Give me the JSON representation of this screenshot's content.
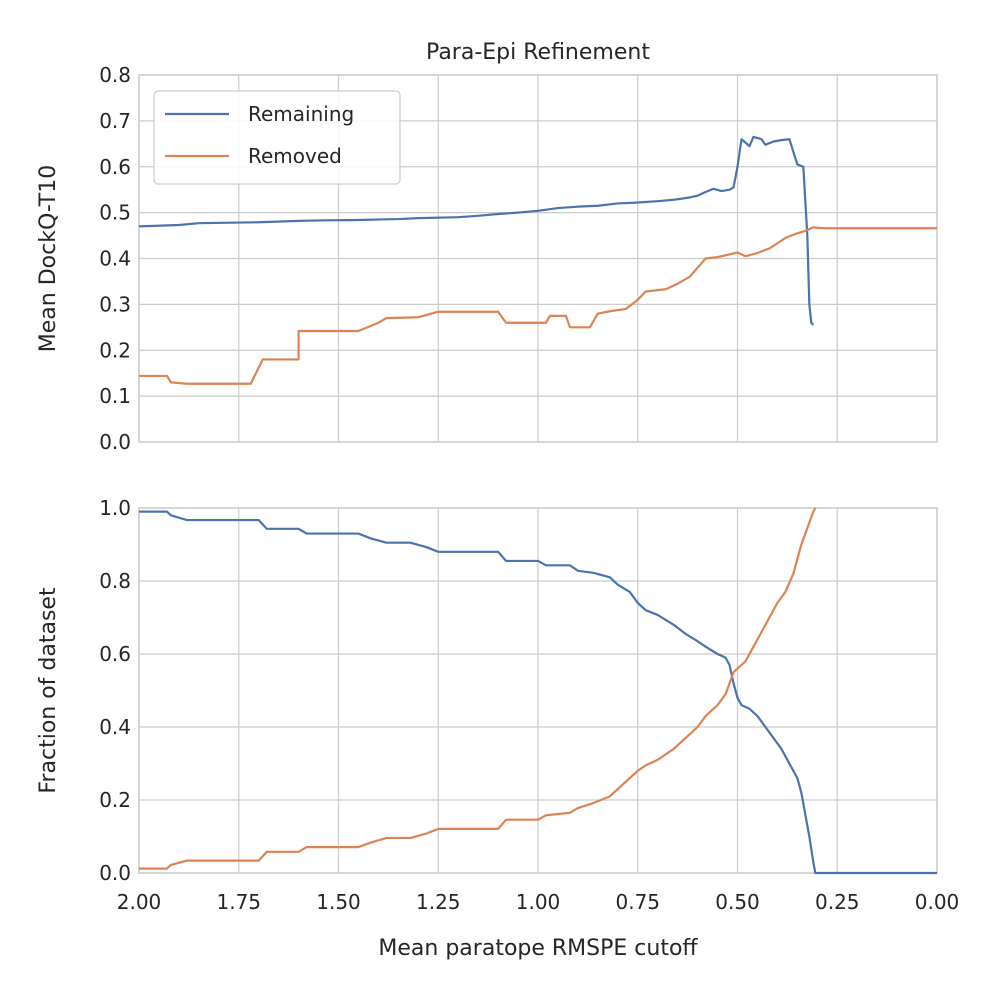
{
  "chart_data": [
    {
      "type": "line",
      "title": "Para-Epi Refinement",
      "xlabel": "",
      "ylabel": "Mean DockQ-T10",
      "xlim": [
        2.0,
        0.0
      ],
      "ylim": [
        0.0,
        0.8
      ],
      "yticks": [
        "0.0",
        "0.1",
        "0.2",
        "0.3",
        "0.4",
        "0.5",
        "0.6",
        "0.7",
        "0.8"
      ],
      "grid": true,
      "legend": {
        "placement": "top-left",
        "entries": [
          "Remaining",
          "Removed"
        ]
      },
      "colors": {
        "Remaining": "#4c72b0",
        "Removed": "#dd8452"
      },
      "series": [
        {
          "name": "Remaining",
          "points": [
            [
              2.0,
              0.47
            ],
            [
              1.9,
              0.473
            ],
            [
              1.85,
              0.477
            ],
            [
              1.7,
              0.479
            ],
            [
              1.6,
              0.482
            ],
            [
              1.55,
              0.483
            ],
            [
              1.45,
              0.484
            ],
            [
              1.35,
              0.486
            ],
            [
              1.3,
              0.488
            ],
            [
              1.2,
              0.49
            ],
            [
              1.15,
              0.493
            ],
            [
              1.1,
              0.497
            ],
            [
              1.05,
              0.5
            ],
            [
              1.0,
              0.504
            ],
            [
              0.95,
              0.51
            ],
            [
              0.9,
              0.513
            ],
            [
              0.85,
              0.515
            ],
            [
              0.8,
              0.52
            ],
            [
              0.75,
              0.522
            ],
            [
              0.7,
              0.525
            ],
            [
              0.66,
              0.528
            ],
            [
              0.62,
              0.533
            ],
            [
              0.6,
              0.537
            ],
            [
              0.58,
              0.545
            ],
            [
              0.56,
              0.552
            ],
            [
              0.54,
              0.547
            ],
            [
              0.52,
              0.55
            ],
            [
              0.51,
              0.555
            ],
            [
              0.5,
              0.6
            ],
            [
              0.49,
              0.66
            ],
            [
              0.47,
              0.645
            ],
            [
              0.46,
              0.665
            ],
            [
              0.44,
              0.66
            ],
            [
              0.43,
              0.648
            ],
            [
              0.41,
              0.655
            ],
            [
              0.39,
              0.658
            ],
            [
              0.37,
              0.66
            ],
            [
              0.35,
              0.605
            ],
            [
              0.335,
              0.6
            ],
            [
              0.325,
              0.45
            ],
            [
              0.32,
              0.3
            ],
            [
              0.315,
              0.26
            ],
            [
              0.31,
              0.255
            ]
          ]
        },
        {
          "name": "Removed",
          "points": [
            [
              2.0,
              0.144
            ],
            [
              1.93,
              0.144
            ],
            [
              1.92,
              0.13
            ],
            [
              1.88,
              0.127
            ],
            [
              1.72,
              0.127
            ],
            [
              1.69,
              0.18
            ],
            [
              1.6,
              0.18
            ],
            [
              1.6,
              0.242
            ],
            [
              1.45,
              0.242
            ],
            [
              1.4,
              0.26
            ],
            [
              1.38,
              0.27
            ],
            [
              1.3,
              0.272
            ],
            [
              1.25,
              0.284
            ],
            [
              1.1,
              0.284
            ],
            [
              1.08,
              0.26
            ],
            [
              0.98,
              0.26
            ],
            [
              0.97,
              0.275
            ],
            [
              0.93,
              0.275
            ],
            [
              0.92,
              0.25
            ],
            [
              0.87,
              0.25
            ],
            [
              0.85,
              0.28
            ],
            [
              0.82,
              0.285
            ],
            [
              0.78,
              0.29
            ],
            [
              0.75,
              0.31
            ],
            [
              0.73,
              0.328
            ],
            [
              0.68,
              0.333
            ],
            [
              0.65,
              0.345
            ],
            [
              0.62,
              0.36
            ],
            [
              0.6,
              0.38
            ],
            [
              0.58,
              0.4
            ],
            [
              0.55,
              0.403
            ],
            [
              0.5,
              0.413
            ],
            [
              0.48,
              0.405
            ],
            [
              0.45,
              0.412
            ],
            [
              0.42,
              0.422
            ],
            [
              0.4,
              0.433
            ],
            [
              0.38,
              0.445
            ],
            [
              0.35,
              0.455
            ],
            [
              0.33,
              0.46
            ],
            [
              0.31,
              0.468
            ],
            [
              0.3,
              0.467
            ],
            [
              0.28,
              0.466
            ],
            [
              0.0,
              0.466
            ]
          ]
        }
      ]
    },
    {
      "type": "line",
      "title": "",
      "xlabel": "Mean paratope RMSPE cutoff",
      "ylabel": "Fraction of dataset",
      "xlim": [
        2.0,
        0.0
      ],
      "ylim": [
        0.0,
        1.0
      ],
      "xticks": [
        "2.00",
        "1.75",
        "1.50",
        "1.25",
        "1.00",
        "0.75",
        "0.50",
        "0.25",
        "0.00"
      ],
      "yticks": [
        "0.0",
        "0.2",
        "0.4",
        "0.6",
        "0.8",
        "1.0"
      ],
      "grid": true,
      "colors": {
        "Remaining": "#4c72b0",
        "Removed": "#dd8452"
      },
      "series": [
        {
          "name": "Remaining",
          "points": [
            [
              2.0,
              0.99
            ],
            [
              1.93,
              0.99
            ],
            [
              1.92,
              0.98
            ],
            [
              1.88,
              0.967
            ],
            [
              1.7,
              0.967
            ],
            [
              1.68,
              0.943
            ],
            [
              1.6,
              0.943
            ],
            [
              1.58,
              0.93
            ],
            [
              1.45,
              0.93
            ],
            [
              1.42,
              0.917
            ],
            [
              1.38,
              0.905
            ],
            [
              1.32,
              0.905
            ],
            [
              1.28,
              0.893
            ],
            [
              1.25,
              0.88
            ],
            [
              1.1,
              0.88
            ],
            [
              1.08,
              0.855
            ],
            [
              1.0,
              0.855
            ],
            [
              0.98,
              0.843
            ],
            [
              0.92,
              0.843
            ],
            [
              0.9,
              0.828
            ],
            [
              0.86,
              0.822
            ],
            [
              0.82,
              0.81
            ],
            [
              0.8,
              0.79
            ],
            [
              0.77,
              0.77
            ],
            [
              0.75,
              0.74
            ],
            [
              0.73,
              0.72
            ],
            [
              0.7,
              0.707
            ],
            [
              0.66,
              0.68
            ],
            [
              0.63,
              0.655
            ],
            [
              0.6,
              0.635
            ],
            [
              0.58,
              0.62
            ],
            [
              0.55,
              0.6
            ],
            [
              0.53,
              0.59
            ],
            [
              0.52,
              0.57
            ],
            [
              0.51,
              0.52
            ],
            [
              0.5,
              0.48
            ],
            [
              0.49,
              0.46
            ],
            [
              0.47,
              0.45
            ],
            [
              0.45,
              0.43
            ],
            [
              0.43,
              0.4
            ],
            [
              0.41,
              0.37
            ],
            [
              0.39,
              0.34
            ],
            [
              0.37,
              0.3
            ],
            [
              0.35,
              0.26
            ],
            [
              0.34,
              0.22
            ],
            [
              0.33,
              0.16
            ],
            [
              0.32,
              0.1
            ],
            [
              0.31,
              0.03
            ],
            [
              0.305,
              0.0
            ],
            [
              0.0,
              0.0
            ]
          ]
        },
        {
          "name": "Removed",
          "points": [
            [
              2.0,
              0.012
            ],
            [
              1.93,
              0.012
            ],
            [
              1.92,
              0.022
            ],
            [
              1.88,
              0.034
            ],
            [
              1.7,
              0.034
            ],
            [
              1.68,
              0.058
            ],
            [
              1.6,
              0.058
            ],
            [
              1.58,
              0.071
            ],
            [
              1.45,
              0.071
            ],
            [
              1.42,
              0.083
            ],
            [
              1.38,
              0.096
            ],
            [
              1.32,
              0.096
            ],
            [
              1.28,
              0.108
            ],
            [
              1.25,
              0.121
            ],
            [
              1.1,
              0.121
            ],
            [
              1.08,
              0.146
            ],
            [
              1.0,
              0.146
            ],
            [
              0.98,
              0.158
            ],
            [
              0.92,
              0.165
            ],
            [
              0.9,
              0.178
            ],
            [
              0.86,
              0.192
            ],
            [
              0.82,
              0.21
            ],
            [
              0.8,
              0.23
            ],
            [
              0.77,
              0.26
            ],
            [
              0.75,
              0.28
            ],
            [
              0.73,
              0.295
            ],
            [
              0.7,
              0.31
            ],
            [
              0.66,
              0.34
            ],
            [
              0.63,
              0.37
            ],
            [
              0.6,
              0.4
            ],
            [
              0.58,
              0.43
            ],
            [
              0.55,
              0.46
            ],
            [
              0.53,
              0.49
            ],
            [
              0.52,
              0.52
            ],
            [
              0.51,
              0.55
            ],
            [
              0.5,
              0.56
            ],
            [
              0.48,
              0.58
            ],
            [
              0.46,
              0.62
            ],
            [
              0.44,
              0.66
            ],
            [
              0.42,
              0.7
            ],
            [
              0.4,
              0.74
            ],
            [
              0.38,
              0.77
            ],
            [
              0.36,
              0.82
            ],
            [
              0.35,
              0.86
            ],
            [
              0.34,
              0.9
            ],
            [
              0.33,
              0.93
            ],
            [
              0.32,
              0.96
            ],
            [
              0.31,
              0.99
            ],
            [
              0.305,
              1.0
            ]
          ]
        }
      ]
    }
  ]
}
